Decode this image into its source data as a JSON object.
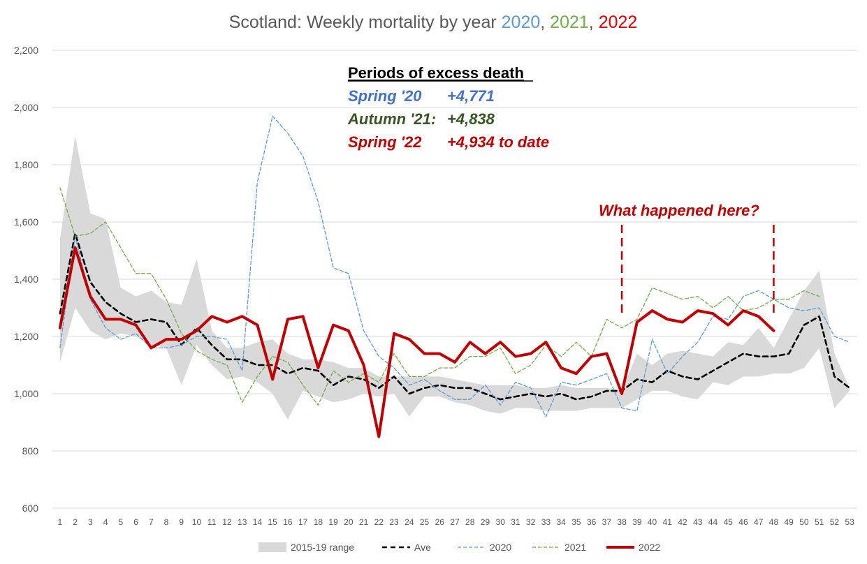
{
  "chart_data": {
    "type": "line",
    "title": {
      "prefix": "Scotland: Weekly mortality by year ",
      "y2020": "2020",
      "sep1": ", ",
      "y2021": "2021",
      "sep2": ", ",
      "y2022": "2022"
    },
    "xlabel": "",
    "ylabel": "",
    "ylim": [
      600,
      2200
    ],
    "y_ticks": [
      600,
      800,
      1000,
      1200,
      1400,
      1600,
      1800,
      2000,
      2200
    ],
    "y_tick_labels": [
      "600",
      "800",
      "1,000",
      "1,200",
      "1,400",
      "1,600",
      "1,800",
      "2,000",
      "2,200"
    ],
    "x": [
      1,
      2,
      3,
      4,
      5,
      6,
      7,
      8,
      9,
      10,
      11,
      12,
      13,
      14,
      15,
      16,
      17,
      18,
      19,
      20,
      21,
      22,
      23,
      24,
      25,
      26,
      27,
      28,
      29,
      30,
      31,
      32,
      33,
      34,
      35,
      36,
      37,
      38,
      39,
      40,
      41,
      42,
      43,
      44,
      45,
      46,
      47,
      48,
      49,
      50,
      51,
      52,
      53
    ],
    "x_tick_labels": [
      "1",
      "2",
      "3",
      "4",
      "5",
      "6",
      "7",
      "8",
      "9",
      "10",
      "11",
      "12",
      "13",
      "14",
      "15",
      "16",
      "17",
      "18",
      "19",
      "20",
      "21",
      "22",
      "23",
      "24",
      "25",
      "26",
      "27",
      "28",
      "29",
      "30",
      "31",
      "32",
      "33",
      "34",
      "35",
      "36",
      "37",
      "38",
      "39",
      "40",
      "41",
      "42",
      "43",
      "44",
      "45",
      "46",
      "47",
      "48",
      "49",
      "50",
      "51",
      "52",
      "53"
    ],
    "grid": true,
    "range_band": {
      "name": "2015-19 range",
      "color": "#d9d9d9",
      "max": [
        1540,
        1900,
        1630,
        1610,
        1370,
        1340,
        1360,
        1320,
        1310,
        1470,
        1220,
        1160,
        1160,
        1180,
        1190,
        1140,
        1120,
        1120,
        1110,
        1090,
        1090,
        1060,
        1060,
        1060,
        1060,
        1060,
        1050,
        1040,
        1030,
        1030,
        1030,
        1020,
        1020,
        1030,
        1020,
        1020,
        1020,
        1010,
        1140,
        1100,
        1140,
        1150,
        1140,
        1130,
        1180,
        1170,
        1230,
        1160,
        1260,
        1360,
        1430,
        1140,
        1020
      ],
      "min": [
        1110,
        1300,
        1220,
        1190,
        1210,
        1200,
        1170,
        1160,
        1030,
        1170,
        1100,
        1050,
        1060,
        1040,
        1000,
        910,
        1010,
        990,
        970,
        980,
        1000,
        990,
        1000,
        920,
        990,
        990,
        970,
        960,
        940,
        930,
        950,
        950,
        940,
        940,
        940,
        950,
        950,
        950,
        980,
        1010,
        1010,
        990,
        980,
        1040,
        1030,
        1060,
        1060,
        1070,
        1070,
        1090,
        1160,
        950,
        1010
      ]
    },
    "series": [
      {
        "name": "Ave",
        "color": "#000000",
        "style": "dashed",
        "values": [
          1280,
          1560,
          1390,
          1320,
          1280,
          1250,
          1260,
          1250,
          1170,
          1230,
          1170,
          1120,
          1120,
          1100,
          1100,
          1070,
          1090,
          1080,
          1030,
          1060,
          1050,
          1020,
          1060,
          1000,
          1020,
          1030,
          1020,
          1020,
          1000,
          980,
          990,
          1000,
          990,
          1000,
          980,
          990,
          1010,
          1010,
          1050,
          1040,
          1080,
          1060,
          1050,
          1080,
          1110,
          1140,
          1130,
          1130,
          1140,
          1240,
          1270,
          1060,
          1020
        ]
      },
      {
        "name": "2020",
        "color": "#5b9bd5",
        "style": "dashed",
        "values": [
          1160,
          1550,
          1330,
          1230,
          1190,
          1210,
          1160,
          1160,
          1170,
          1200,
          1200,
          1190,
          1080,
          1740,
          1970,
          1910,
          1830,
          1670,
          1440,
          1420,
          1220,
          1130,
          1090,
          1030,
          1050,
          1010,
          980,
          980,
          1030,
          960,
          1040,
          1020,
          920,
          1040,
          1030,
          1050,
          1070,
          950,
          940,
          1190,
          1070,
          1130,
          1180,
          1270,
          1260,
          1340,
          1360,
          1330,
          1300,
          1290,
          1300,
          1200,
          1180
        ]
      },
      {
        "name": "2021",
        "color": "#70ad47",
        "style": "dashed",
        "values": [
          1720,
          1550,
          1560,
          1600,
          1510,
          1420,
          1420,
          1330,
          1210,
          1150,
          1120,
          1100,
          970,
          1060,
          1130,
          1110,
          1030,
          960,
          1080,
          1040,
          1070,
          1040,
          1140,
          1060,
          1060,
          1090,
          1090,
          1130,
          1130,
          1160,
          1070,
          1100,
          1170,
          1130,
          1180,
          1130,
          1260,
          1230,
          1260,
          1370,
          1350,
          1330,
          1340,
          1300,
          1340,
          1290,
          1300,
          1330,
          1330,
          1360,
          1340,
          null,
          null
        ]
      },
      {
        "name": "2022",
        "color": "#c00000",
        "style": "solid",
        "values": [
          1230,
          1510,
          1340,
          1260,
          1260,
          1240,
          1160,
          1190,
          1190,
          1220,
          1270,
          1250,
          1270,
          1240,
          1050,
          1260,
          1270,
          1090,
          1240,
          1220,
          1100,
          850,
          1210,
          1190,
          1140,
          1140,
          1110,
          1180,
          1140,
          1180,
          1130,
          1140,
          1180,
          1090,
          1070,
          1130,
          1140,
          1000,
          1250,
          1290,
          1260,
          1250,
          1290,
          1280,
          1240,
          1290,
          1270,
          1220,
          null,
          null,
          null,
          null,
          null
        ]
      }
    ],
    "legend": {
      "position": "bottom",
      "items": [
        "2015-19 range",
        "Ave",
        "2020",
        "2021",
        "2022"
      ]
    },
    "annotations": {
      "periods_heading": "Periods of excess death",
      "lines": [
        {
          "label": "Spring '20",
          "value": "+4,771",
          "color": "#4472c4"
        },
        {
          "label": "Autumn '21:",
          "value": "+4,838",
          "color": "#375623"
        },
        {
          "label": "Spring '22",
          "value": "+4,934 to date",
          "color": "#c00000"
        }
      ],
      "question": "What happened here?",
      "question_color": "#c00000",
      "marker_weeks": [
        38,
        48
      ]
    }
  }
}
